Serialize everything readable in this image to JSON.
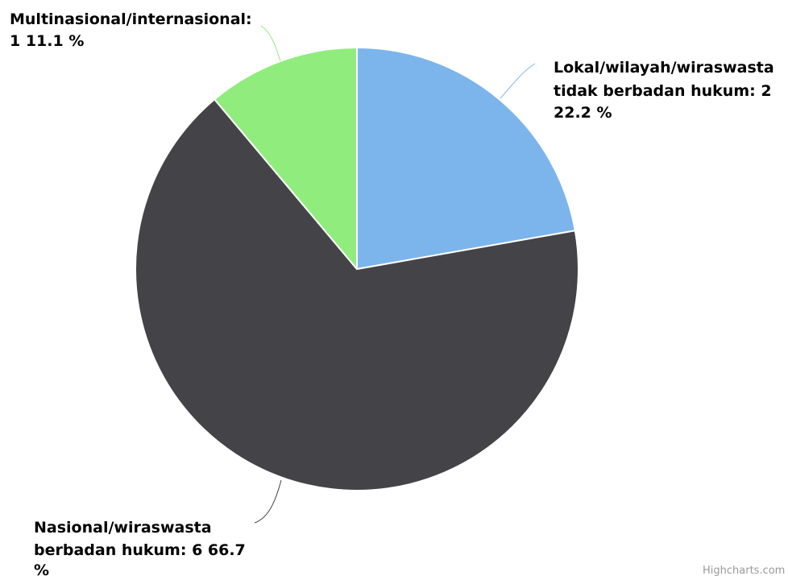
{
  "chart_data": {
    "type": "pie",
    "title": "",
    "slices": [
      {
        "name": "Lokal/wilayah/wiraswasta tidak berbadan hukum",
        "value": 2,
        "percent": "22.2",
        "color": "#7cb5ec",
        "label_lines": [
          "Lokal/wilayah/wiraswasta",
          "tidak berbadan hukum: 2",
          "22.2 %"
        ]
      },
      {
        "name": "Nasional/wiraswasta berbadan hukum",
        "value": 6,
        "percent": "66.7",
        "color": "#434348",
        "label_lines": [
          "Nasional/wiraswasta",
          "berbadan hukum: 6 66.7",
          "%"
        ]
      },
      {
        "name": "Multinasional/internasional",
        "value": 1,
        "percent": "11.1",
        "color": "#90ed7d",
        "label_lines": [
          "Multinasional/internasional:",
          "1 11.1 %"
        ]
      }
    ]
  },
  "credits": {
    "text": "Highcharts.com"
  }
}
